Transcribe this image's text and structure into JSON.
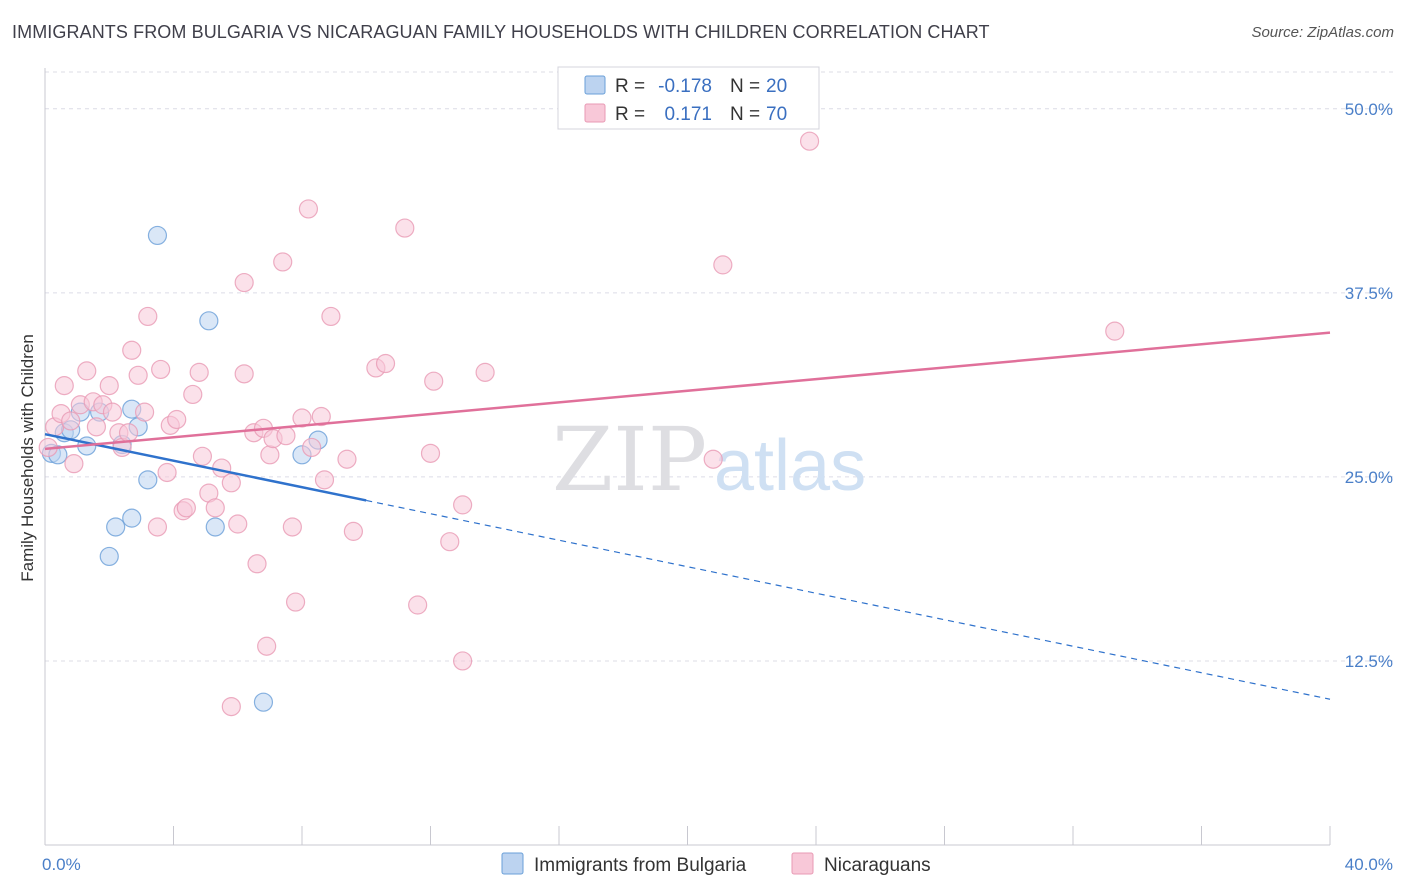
{
  "chart_data": {
    "type": "scatter",
    "title": "IMMIGRANTS FROM BULGARIA VS NICARAGUAN FAMILY HOUSEHOLDS WITH CHILDREN CORRELATION CHART",
    "source": "Source: ZipAtlas.com",
    "ylabel": "Family Households with Children",
    "xlabel": "",
    "xlim": [
      0,
      40
    ],
    "ylim": [
      0,
      52.5
    ],
    "x_tick_labels": [
      {
        "value": 0,
        "label": "0.0%"
      },
      {
        "value": 40,
        "label": "40.0%"
      }
    ],
    "y_tick_labels": [
      {
        "value": 12.5,
        "label": "12.5%"
      },
      {
        "value": 25,
        "label": "25.0%"
      },
      {
        "value": 37.5,
        "label": "37.5%"
      },
      {
        "value": 50,
        "label": "50.0%"
      }
    ],
    "grid": true,
    "legend_position": "top-center",
    "watermark": "ZIPatlas",
    "series": [
      {
        "name": "Immigrants from Bulgaria",
        "color": "#6a9fd8",
        "fill": "#bcd3f0",
        "line_color": "#2f72cc",
        "R": "-0.178",
        "N": "20",
        "trend": {
          "x0": 0,
          "y0": 27.9,
          "x1": 40,
          "y1": 9.9,
          "solid_until": 10
        },
        "points": [
          {
            "x": 0.2,
            "y": 26.6
          },
          {
            "x": 0.4,
            "y": 26.5
          },
          {
            "x": 0.6,
            "y": 28.0
          },
          {
            "x": 0.8,
            "y": 28.2
          },
          {
            "x": 1.1,
            "y": 29.4
          },
          {
            "x": 1.3,
            "y": 27.1
          },
          {
            "x": 1.7,
            "y": 29.4
          },
          {
            "x": 2.0,
            "y": 19.6
          },
          {
            "x": 2.2,
            "y": 21.6
          },
          {
            "x": 2.4,
            "y": 27.2
          },
          {
            "x": 2.7,
            "y": 29.6
          },
          {
            "x": 2.7,
            "y": 22.2
          },
          {
            "x": 2.9,
            "y": 28.4
          },
          {
            "x": 3.2,
            "y": 24.8
          },
          {
            "x": 3.5,
            "y": 41.4
          },
          {
            "x": 5.1,
            "y": 35.6
          },
          {
            "x": 5.3,
            "y": 21.6
          },
          {
            "x": 6.8,
            "y": 9.7
          },
          {
            "x": 8.0,
            "y": 26.5
          },
          {
            "x": 8.5,
            "y": 27.5
          }
        ]
      },
      {
        "name": "Nicaraguans",
        "color": "#e89ab4",
        "fill": "#f8c8d8",
        "line_color": "#e0709a",
        "R": "0.171",
        "N": "70",
        "trend": {
          "x0": 0,
          "y0": 26.9,
          "x1": 40,
          "y1": 34.8,
          "solid_until": 40
        },
        "points": [
          {
            "x": 0.1,
            "y": 27.0
          },
          {
            "x": 0.3,
            "y": 28.4
          },
          {
            "x": 0.5,
            "y": 29.3
          },
          {
            "x": 0.6,
            "y": 31.2
          },
          {
            "x": 0.8,
            "y": 28.8
          },
          {
            "x": 0.9,
            "y": 25.9
          },
          {
            "x": 1.1,
            "y": 29.9
          },
          {
            "x": 1.3,
            "y": 32.2
          },
          {
            "x": 1.5,
            "y": 30.1
          },
          {
            "x": 1.6,
            "y": 28.4
          },
          {
            "x": 1.8,
            "y": 29.9
          },
          {
            "x": 2.0,
            "y": 31.2
          },
          {
            "x": 2.1,
            "y": 29.4
          },
          {
            "x": 2.3,
            "y": 28.0
          },
          {
            "x": 2.4,
            "y": 27.0
          },
          {
            "x": 2.6,
            "y": 28.0
          },
          {
            "x": 2.7,
            "y": 33.6
          },
          {
            "x": 2.9,
            "y": 31.9
          },
          {
            "x": 3.1,
            "y": 29.4
          },
          {
            "x": 3.2,
            "y": 35.9
          },
          {
            "x": 3.5,
            "y": 21.6
          },
          {
            "x": 3.6,
            "y": 32.3
          },
          {
            "x": 3.8,
            "y": 25.3
          },
          {
            "x": 3.9,
            "y": 28.5
          },
          {
            "x": 4.1,
            "y": 28.9
          },
          {
            "x": 4.3,
            "y": 22.7
          },
          {
            "x": 4.4,
            "y": 22.9
          },
          {
            "x": 4.6,
            "y": 30.6
          },
          {
            "x": 4.8,
            "y": 32.1
          },
          {
            "x": 4.9,
            "y": 26.4
          },
          {
            "x": 5.1,
            "y": 23.9
          },
          {
            "x": 5.3,
            "y": 22.9
          },
          {
            "x": 5.5,
            "y": 25.6
          },
          {
            "x": 5.8,
            "y": 24.6
          },
          {
            "x": 5.8,
            "y": 9.4
          },
          {
            "x": 6.0,
            "y": 21.8
          },
          {
            "x": 6.2,
            "y": 38.2
          },
          {
            "x": 6.2,
            "y": 32.0
          },
          {
            "x": 6.5,
            "y": 28.0
          },
          {
            "x": 6.6,
            "y": 19.1
          },
          {
            "x": 6.8,
            "y": 28.3
          },
          {
            "x": 6.9,
            "y": 13.5
          },
          {
            "x": 7.0,
            "y": 26.5
          },
          {
            "x": 7.1,
            "y": 27.6
          },
          {
            "x": 7.4,
            "y": 39.6
          },
          {
            "x": 7.5,
            "y": 27.8
          },
          {
            "x": 7.7,
            "y": 21.6
          },
          {
            "x": 7.8,
            "y": 16.5
          },
          {
            "x": 8.0,
            "y": 29.0
          },
          {
            "x": 8.2,
            "y": 43.2
          },
          {
            "x": 8.3,
            "y": 27.0
          },
          {
            "x": 8.6,
            "y": 29.1
          },
          {
            "x": 8.7,
            "y": 24.8
          },
          {
            "x": 8.9,
            "y": 35.9
          },
          {
            "x": 9.4,
            "y": 26.2
          },
          {
            "x": 9.6,
            "y": 21.3
          },
          {
            "x": 10.3,
            "y": 32.4
          },
          {
            "x": 10.6,
            "y": 32.7
          },
          {
            "x": 11.2,
            "y": 41.9
          },
          {
            "x": 11.6,
            "y": 16.3
          },
          {
            "x": 12.0,
            "y": 26.6
          },
          {
            "x": 12.1,
            "y": 31.5
          },
          {
            "x": 12.6,
            "y": 20.6
          },
          {
            "x": 13.0,
            "y": 12.5
          },
          {
            "x": 13.0,
            "y": 23.1
          },
          {
            "x": 13.7,
            "y": 32.1
          },
          {
            "x": 20.8,
            "y": 26.2
          },
          {
            "x": 21.1,
            "y": 39.4
          },
          {
            "x": 23.8,
            "y": 47.8
          },
          {
            "x": 33.3,
            "y": 34.9
          }
        ]
      }
    ]
  },
  "legend_box": {
    "r_label": "R =",
    "n_label": "N ="
  }
}
